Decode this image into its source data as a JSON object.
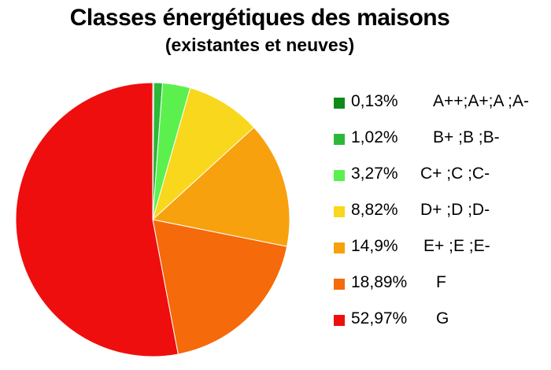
{
  "chart_data": {
    "type": "pie",
    "title": "Classes énergétiques des maisons",
    "subtitle": "(existantes et neuves)",
    "slices": [
      {
        "value": 0.13,
        "value_label": "0,13%",
        "label": "A++;A+;A ;A-",
        "color": "#0E8A16"
      },
      {
        "value": 1.02,
        "value_label": "1,02%",
        "label": "B+ ;B ;B-",
        "color": "#2DB83A"
      },
      {
        "value": 3.27,
        "value_label": "3,27%",
        "label": "C+ ;C ;C-",
        "color": "#5CF04F"
      },
      {
        "value": 8.82,
        "value_label": "8,82%",
        "label": "D+ ;D ;D-",
        "color": "#F9D71C"
      },
      {
        "value": 14.9,
        "value_label": "14,9%",
        "label": "E+ ;E ;E-",
        "color": "#F7A10E"
      },
      {
        "value": 18.89,
        "value_label": "18,89%",
        "label": "F",
        "color": "#F56A0A"
      },
      {
        "value": 52.97,
        "value_label": "52,97%",
        "label": "G",
        "color": "#EE0E0E"
      }
    ],
    "start_angle_deg": 0,
    "direction": "clockwise",
    "legend_position": "right"
  }
}
